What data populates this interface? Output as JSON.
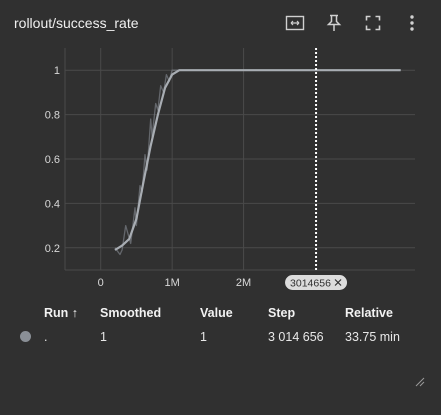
{
  "title": "rollout/success_rate",
  "toolbar": {
    "icons": [
      "fit-domain-icon",
      "pin-icon",
      "fullscreen-icon",
      "more-vert-icon"
    ]
  },
  "colors": {
    "background": "#303030",
    "grid": "#4a4a4a",
    "raw_line": "#7a7f86",
    "smoothed_line": "#a8adb3",
    "step_marker": "#ffffff"
  },
  "chart_data": {
    "type": "line",
    "title": "rollout/success_rate",
    "xlabel": "",
    "ylabel": "",
    "xlim": [
      -0.5,
      4.4
    ],
    "ylim": [
      0.1,
      1.1
    ],
    "x_ticks": [
      0,
      1,
      2
    ],
    "x_tick_labels": [
      "0",
      "1M",
      "2M"
    ],
    "y_ticks": [
      0.2,
      0.4,
      0.6,
      0.8,
      1
    ],
    "y_tick_labels": [
      "0.2",
      "0.4",
      "0.6",
      "0.8",
      "1"
    ],
    "grid": true,
    "x_unit_note": "millions of steps",
    "series": [
      {
        "role": "raw",
        "x": [
          0.2,
          0.27,
          0.3,
          0.35,
          0.42,
          0.48,
          0.5,
          0.55,
          0.58,
          0.62,
          0.65,
          0.7,
          0.72,
          0.77,
          0.8,
          0.84,
          0.88,
          0.92,
          0.96,
          1.0,
          1.05,
          1.1,
          1.2,
          1.5,
          2.0,
          2.5,
          3.0,
          3.5,
          4.0,
          4.2
        ],
        "y": [
          0.2,
          0.17,
          0.19,
          0.3,
          0.22,
          0.38,
          0.3,
          0.48,
          0.45,
          0.62,
          0.55,
          0.78,
          0.7,
          0.85,
          0.82,
          0.93,
          0.9,
          0.98,
          0.95,
          1.0,
          1.0,
          1.0,
          1.0,
          1.0,
          1.0,
          1.0,
          1.0,
          1.0,
          1.0,
          1.0
        ]
      },
      {
        "role": "smoothed",
        "x": [
          0.2,
          0.3,
          0.4,
          0.5,
          0.6,
          0.7,
          0.8,
          0.9,
          1.0,
          1.1,
          1.2,
          1.5,
          2.0,
          2.5,
          3.0,
          3.5,
          4.0,
          4.2
        ],
        "y": [
          0.19,
          0.21,
          0.24,
          0.33,
          0.5,
          0.66,
          0.8,
          0.92,
          0.98,
          1.0,
          1.0,
          1.0,
          1.0,
          1.0,
          1.0,
          1.0,
          1.0,
          1.0
        ]
      }
    ],
    "step_marker": {
      "x": 3.014656,
      "label": "3014656"
    }
  },
  "table": {
    "headers": {
      "run": "Run ↑",
      "smoothed": "Smoothed",
      "value": "Value",
      "step": "Step",
      "relative": "Relative"
    },
    "rows": [
      {
        "run": ".",
        "smoothed": "1",
        "value": "1",
        "step": "3 014 656",
        "relative": "33.75 min"
      }
    ]
  }
}
